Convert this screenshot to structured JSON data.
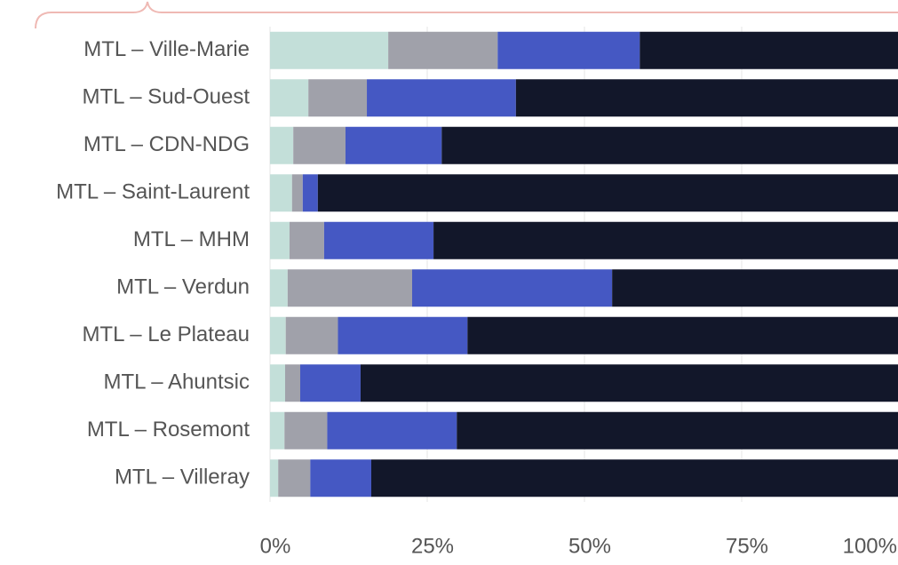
{
  "chart_data": {
    "type": "stacked-bar",
    "categories": [
      "MTL – Ville-Marie",
      "MTL – Sud-Ouest",
      "MTL – CDN-NDG",
      "MTL – Saint-Laurent",
      "MTL – MHM",
      "MTL – Verdun",
      "MTL – Le Plateau",
      "MTL – Ahuntsic",
      "MTL – Rosemont",
      "MTL – Villeray"
    ],
    "series": [
      {
        "color": "#c3dfd9",
        "values": [
          18.8,
          6.1,
          3.7,
          3.5,
          3.1,
          2.8,
          2.5,
          2.4,
          2.3,
          1.3
        ]
      },
      {
        "color": "#a0a1aa",
        "values": [
          17.4,
          9.3,
          8.3,
          1.7,
          5.5,
          19.8,
          8.3,
          2.4,
          6.8,
          5.1
        ]
      },
      {
        "color": "#4558c3",
        "values": [
          22.6,
          23.7,
          15.3,
          2.4,
          17.4,
          31.8,
          20.6,
          9.6,
          20.6,
          9.7
        ]
      },
      {
        "color": "#12172a",
        "values": [
          41.2,
          60.9,
          72.7,
          92.4,
          74.0,
          45.6,
          68.6,
          85.6,
          70.3,
          83.9
        ]
      }
    ],
    "xlim": [
      0,
      100
    ],
    "xticks": [
      {
        "value": 0,
        "label": "0%"
      },
      {
        "value": 25,
        "label": "25%"
      },
      {
        "value": 50,
        "label": "50%"
      },
      {
        "value": 75,
        "label": "75%"
      },
      {
        "value": 100,
        "label": "100%"
      }
    ],
    "grid": true
  }
}
